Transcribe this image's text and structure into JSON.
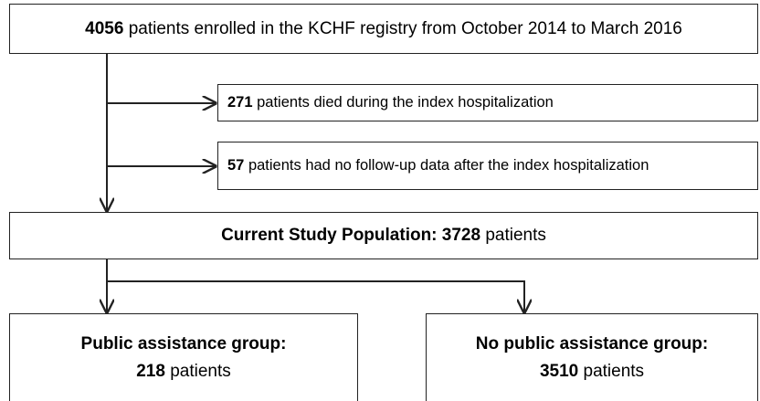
{
  "nodes": [
    {
      "count": 4056,
      "text": "patients enrolled in the KCHF registry from October 2014 to March 2016"
    },
    {
      "count": 271,
      "text": "patients died during the index hospitalization"
    },
    {
      "count": 57,
      "text": "patients had no follow-up data after the index hospitalization"
    },
    {
      "label": "Current Study Population:",
      "count": 3728,
      "text": "patients"
    },
    {
      "label": "Public assistance group:",
      "count": 218,
      "text": "patients"
    },
    {
      "label": "No public assistance group:",
      "count": 3510,
      "text": "patients"
    }
  ]
}
